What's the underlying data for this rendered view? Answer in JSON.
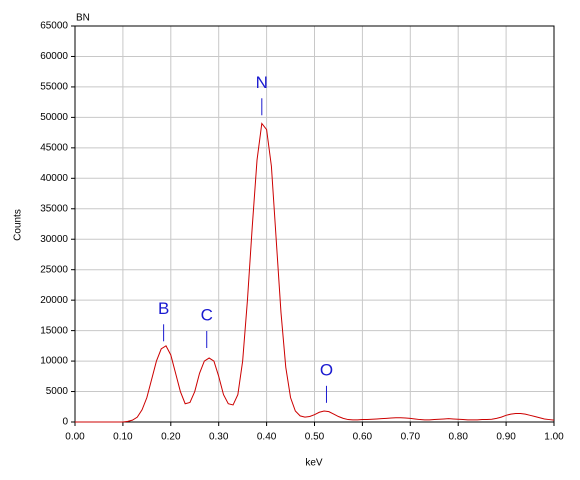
{
  "chart_data": {
    "type": "line",
    "title": "BN",
    "x_label": "keV",
    "y_label": "Counts",
    "x": [
      0,
      0.01,
      0.02,
      0.03,
      0.04,
      0.05,
      0.06,
      0.07,
      0.08,
      0.09,
      0.1,
      0.11,
      0.12,
      0.13,
      0.14,
      0.15,
      0.16,
      0.17,
      0.18,
      0.19,
      0.2,
      0.21,
      0.22,
      0.23,
      0.24,
      0.25,
      0.26,
      0.27,
      0.28,
      0.29,
      0.3,
      0.31,
      0.32,
      0.33,
      0.34,
      0.35,
      0.36,
      0.37,
      0.38,
      0.39,
      0.4,
      0.41,
      0.42,
      0.43,
      0.44,
      0.45,
      0.46,
      0.47,
      0.48,
      0.49,
      0.5,
      0.51,
      0.52,
      0.53,
      0.54,
      0.55,
      0.56,
      0.57,
      0.58,
      0.59,
      0.6,
      0.61,
      0.62,
      0.63,
      0.64,
      0.65,
      0.66,
      0.67,
      0.68,
      0.69,
      0.7,
      0.71,
      0.72,
      0.73,
      0.74,
      0.75,
      0.76,
      0.77,
      0.78,
      0.79,
      0.8,
      0.81,
      0.82,
      0.83,
      0.84,
      0.85,
      0.86,
      0.87,
      0.88,
      0.89,
      0.9,
      0.91,
      0.92,
      0.93,
      0.94,
      0.95,
      0.96,
      0.97,
      0.98,
      0.99,
      1
    ],
    "series": [
      {
        "color": "#cc0000",
        "values": [
          0,
          0,
          0,
          0,
          0,
          0,
          0,
          0,
          0,
          0,
          0,
          100,
          300,
          800,
          2000,
          4000,
          7000,
          10000,
          12000,
          12500,
          11000,
          8000,
          5000,
          3000,
          3200,
          5000,
          8000,
          10000,
          10500,
          10000,
          7500,
          4500,
          3000,
          2800,
          4500,
          10000,
          20000,
          32000,
          43000,
          49000,
          48000,
          42000,
          30000,
          18000,
          9000,
          4000,
          1800,
          1000,
          800,
          900,
          1200,
          1600,
          1800,
          1700,
          1300,
          900,
          600,
          400,
          350,
          350,
          400,
          400,
          450,
          500,
          550,
          600,
          650,
          700,
          700,
          650,
          600,
          500,
          400,
          350,
          350,
          400,
          450,
          500,
          550,
          500,
          450,
          400,
          350,
          350,
          350,
          400,
          400,
          450,
          600,
          800,
          1100,
          1300,
          1400,
          1400,
          1300,
          1100,
          900,
          700,
          500,
          400,
          300
        ]
      }
    ],
    "xlim": [
      0,
      1
    ],
    "xticks": [
      {
        "value": 0,
        "label": "0.00"
      },
      {
        "value": 0.1,
        "label": "0.10"
      },
      {
        "value": 0.2,
        "label": "0.20"
      },
      {
        "value": 0.3,
        "label": "0.30"
      },
      {
        "value": 0.4,
        "label": "0.40"
      },
      {
        "value": 0.5,
        "label": "0.50"
      },
      {
        "value": 0.6,
        "label": "0.60"
      },
      {
        "value": 0.7,
        "label": "0.70"
      },
      {
        "value": 0.8,
        "label": "0.80"
      },
      {
        "value": 0.9,
        "label": "0.90"
      },
      {
        "value": 1,
        "label": "1.00"
      }
    ],
    "ylim": [
      0,
      65000
    ],
    "yticks": [
      0,
      5000,
      10000,
      15000,
      20000,
      25000,
      30000,
      35000,
      40000,
      45000,
      50000,
      55000,
      60000,
      65000
    ],
    "grid": true,
    "annotations": [
      {
        "text": "B",
        "x": 0.185,
        "y": 18500
      },
      {
        "text": "C",
        "x": 0.275,
        "y": 17400
      },
      {
        "text": "N",
        "x": 0.39,
        "y": 55600
      },
      {
        "text": "O",
        "x": 0.525,
        "y": 8400
      }
    ]
  }
}
